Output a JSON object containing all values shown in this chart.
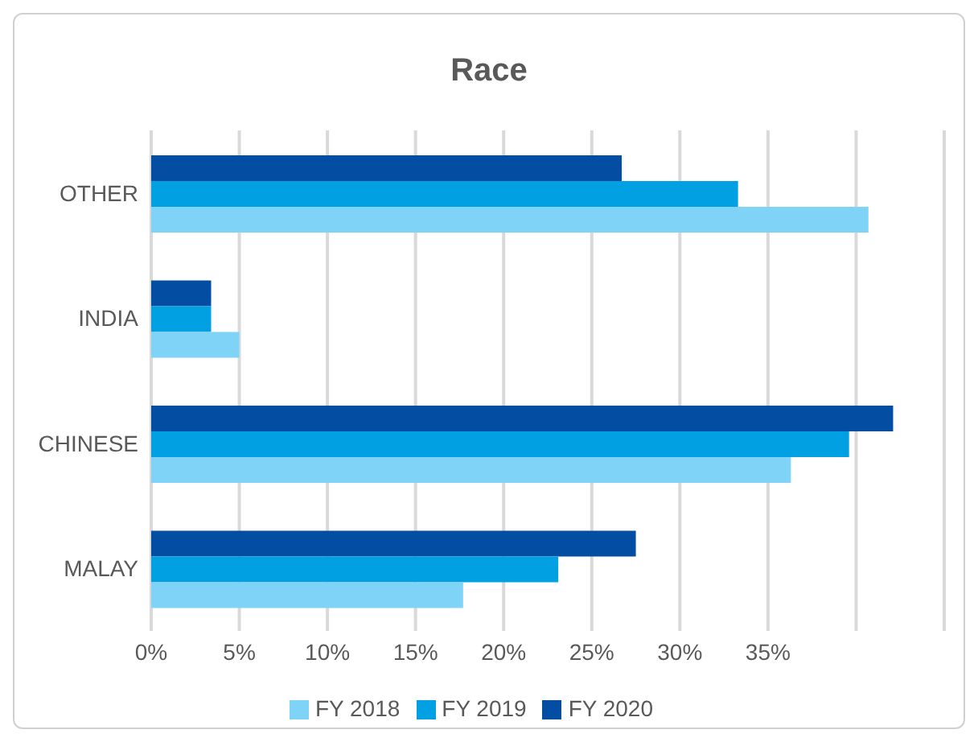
{
  "chart_data": {
    "type": "bar",
    "orientation": "horizontal",
    "title": "Race",
    "categories": [
      "OTHER",
      "INDIA",
      "CHINESE",
      "MALAY"
    ],
    "series": [
      {
        "name": "FY 2020",
        "color": "#034ea2",
        "values": [
          26.7,
          3.4,
          42.1,
          27.5
        ]
      },
      {
        "name": "FY 2019",
        "color": "#00a0e3",
        "values": [
          33.3,
          3.4,
          39.6,
          23.1
        ]
      },
      {
        "name": "FY 2018",
        "color": "#7fd3f7",
        "values": [
          40.7,
          5.0,
          36.3,
          17.7
        ]
      }
    ],
    "xlim": [
      0,
      45
    ],
    "xticks": [
      {
        "value": 0,
        "label": "0%"
      },
      {
        "value": 5,
        "label": "5%"
      },
      {
        "value": 10,
        "label": "10%"
      },
      {
        "value": 15,
        "label": "15%"
      },
      {
        "value": 20,
        "label": "20%"
      },
      {
        "value": 25,
        "label": "25%"
      },
      {
        "value": 30,
        "label": "30%"
      },
      {
        "value": 35,
        "label": "35%"
      },
      {
        "value": 40,
        "label": null
      },
      {
        "value": 45,
        "label": null
      }
    ],
    "grid": "x",
    "legend": "bottom"
  }
}
